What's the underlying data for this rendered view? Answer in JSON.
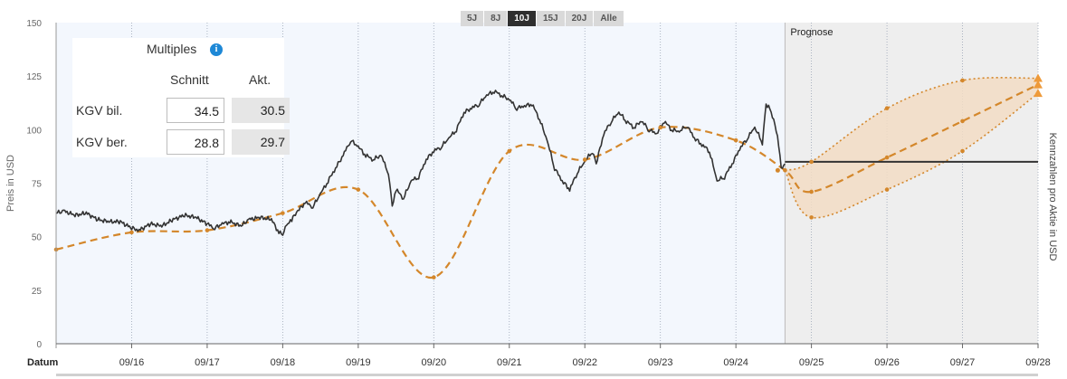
{
  "range_buttons": [
    {
      "label": "5J",
      "active": false
    },
    {
      "label": "8J",
      "active": false
    },
    {
      "label": "10J",
      "active": true
    },
    {
      "label": "15J",
      "active": false
    },
    {
      "label": "20J",
      "active": false
    },
    {
      "label": "Alle",
      "active": false
    }
  ],
  "multiples": {
    "title": "Multiples",
    "info_icon": "info-icon",
    "col_avg": "Schnitt",
    "col_current": "Akt.",
    "rows": [
      {
        "label": "KGV bil.",
        "avg": "34.5",
        "current": "30.5"
      },
      {
        "label": "KGV ber.",
        "avg": "28.8",
        "current": "29.7"
      }
    ]
  },
  "prognose_label": "Prognose",
  "colors": {
    "price": "#333333",
    "fair_value": "#d4872b",
    "forecast_band": "#f2dcc4",
    "forecast_bg": "#eeeeee",
    "plot_bg": "#f3f7fd",
    "grid": "#9aa4b5",
    "info": "#1e88d6"
  },
  "chart_data": {
    "type": "line",
    "xlabel": "Datum",
    "ylabel": "Preis in USD",
    "y2label": "Kennzahlen pro Aktie in USD",
    "x_ticks": [
      "09/16",
      "09/17",
      "09/18",
      "09/19",
      "09/20",
      "09/21",
      "09/22",
      "09/23",
      "09/24",
      "09/25",
      "09/26",
      "09/27",
      "09/28"
    ],
    "y_ticks": [
      0,
      25,
      50,
      75,
      100,
      125,
      150
    ],
    "ylim": [
      0,
      150
    ],
    "xlim": [
      2015.0,
      2028.0
    ],
    "forecast_start": 2024.65,
    "grid": "vertical dotted",
    "series": [
      {
        "style": "solid-line",
        "points": [
          [
            2015.0,
            61
          ],
          [
            2015.1,
            62
          ],
          [
            2015.25,
            60
          ],
          [
            2015.4,
            61
          ],
          [
            2015.55,
            58
          ],
          [
            2015.7,
            57
          ],
          [
            2015.85,
            57
          ],
          [
            2016.0,
            54
          ],
          [
            2016.1,
            53
          ],
          [
            2016.25,
            56
          ],
          [
            2016.4,
            55
          ],
          [
            2016.55,
            58
          ],
          [
            2016.7,
            60
          ],
          [
            2016.85,
            59
          ],
          [
            2017.0,
            56
          ],
          [
            2017.1,
            54
          ],
          [
            2017.2,
            56
          ],
          [
            2017.3,
            57
          ],
          [
            2017.45,
            55
          ],
          [
            2017.55,
            58
          ],
          [
            2017.7,
            59
          ],
          [
            2017.85,
            58
          ],
          [
            2017.95,
            52
          ],
          [
            2018.0,
            51
          ],
          [
            2018.05,
            55
          ],
          [
            2018.12,
            58
          ],
          [
            2018.2,
            62
          ],
          [
            2018.3,
            66
          ],
          [
            2018.4,
            64
          ],
          [
            2018.5,
            70
          ],
          [
            2018.6,
            76
          ],
          [
            2018.7,
            82
          ],
          [
            2018.8,
            88
          ],
          [
            2018.9,
            95
          ],
          [
            2019.0,
            92
          ],
          [
            2019.1,
            88
          ],
          [
            2019.2,
            86
          ],
          [
            2019.3,
            88
          ],
          [
            2019.4,
            80
          ],
          [
            2019.45,
            64
          ],
          [
            2019.5,
            72
          ],
          [
            2019.6,
            68
          ],
          [
            2019.7,
            76
          ],
          [
            2019.8,
            78
          ],
          [
            2019.9,
            86
          ],
          [
            2020.0,
            90
          ],
          [
            2020.1,
            92
          ],
          [
            2020.2,
            96
          ],
          [
            2020.3,
            100
          ],
          [
            2020.4,
            108
          ],
          [
            2020.5,
            110
          ],
          [
            2020.6,
            112
          ],
          [
            2020.7,
            116
          ],
          [
            2020.8,
            118
          ],
          [
            2020.9,
            116
          ],
          [
            2021.0,
            114
          ],
          [
            2021.1,
            110
          ],
          [
            2021.2,
            111
          ],
          [
            2021.3,
            112
          ],
          [
            2021.4,
            105
          ],
          [
            2021.5,
            95
          ],
          [
            2021.6,
            82
          ],
          [
            2021.7,
            76
          ],
          [
            2021.8,
            72
          ],
          [
            2021.9,
            80
          ],
          [
            2022.0,
            85
          ],
          [
            2022.1,
            90
          ],
          [
            2022.15,
            84
          ],
          [
            2022.25,
            98
          ],
          [
            2022.35,
            104
          ],
          [
            2022.45,
            108
          ],
          [
            2022.55,
            104
          ],
          [
            2022.65,
            101
          ],
          [
            2022.75,
            104
          ],
          [
            2022.85,
            100
          ],
          [
            2022.95,
            98
          ],
          [
            2023.05,
            104
          ],
          [
            2023.15,
            100
          ],
          [
            2023.25,
            99
          ],
          [
            2023.35,
            102
          ],
          [
            2023.45,
            96
          ],
          [
            2023.55,
            93
          ],
          [
            2023.65,
            90
          ],
          [
            2023.75,
            76
          ],
          [
            2023.85,
            78
          ],
          [
            2023.95,
            84
          ],
          [
            2024.05,
            91
          ],
          [
            2024.15,
            96
          ],
          [
            2024.25,
            101
          ],
          [
            2024.35,
            94
          ],
          [
            2024.4,
            112
          ],
          [
            2024.45,
            110
          ],
          [
            2024.55,
            98
          ],
          [
            2024.6,
            82
          ],
          [
            2024.65,
            84
          ]
        ]
      },
      {
        "style": "dashed-line",
        "points": [
          [
            2015.0,
            44
          ],
          [
            2016.0,
            52
          ],
          [
            2017.0,
            53
          ],
          [
            2018.0,
            61
          ],
          [
            2019.0,
            72
          ],
          [
            2020.0,
            31
          ],
          [
            2021.0,
            90
          ],
          [
            2022.0,
            86
          ],
          [
            2023.0,
            101
          ],
          [
            2024.0,
            95
          ],
          [
            2024.65,
            81
          ],
          [
            2025.0,
            71
          ],
          [
            2026.0,
            87
          ],
          [
            2027.0,
            104
          ],
          [
            2028.0,
            121
          ]
        ]
      },
      {
        "style": "dotted-upper",
        "points": [
          [
            2024.65,
            81
          ],
          [
            2025.0,
            85
          ],
          [
            2026.0,
            110
          ],
          [
            2027.0,
            123
          ],
          [
            2028.0,
            124
          ]
        ]
      },
      {
        "style": "dotted-lower",
        "points": [
          [
            2024.65,
            81
          ],
          [
            2025.0,
            59
          ],
          [
            2026.0,
            72
          ],
          [
            2027.0,
            90
          ],
          [
            2028.0,
            117
          ]
        ]
      },
      {
        "style": "flat-line",
        "points": [
          [
            2024.65,
            85
          ],
          [
            2028.0,
            85
          ]
        ]
      }
    ]
  }
}
